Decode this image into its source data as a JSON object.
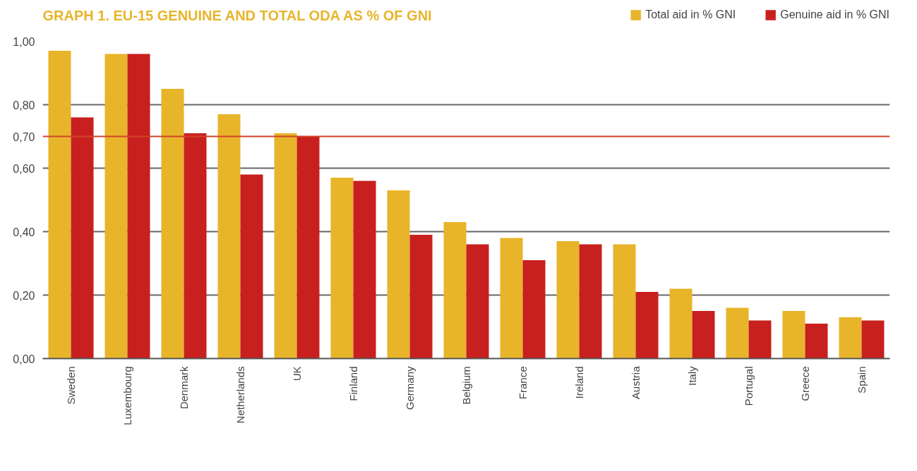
{
  "chart_data": {
    "type": "bar",
    "title": "GRAPH 1. EU-15 GENUINE AND TOTAL ODA AS % OF GNI",
    "categories": [
      "Sweden",
      "Luxembourg",
      "Denmark",
      "Netherlands",
      "UK",
      "Finland",
      "Germany",
      "Belgium",
      "France",
      "Ireland",
      "Austria",
      "Italy",
      "Portugal",
      "Greece",
      "Spain"
    ],
    "series": [
      {
        "name": "Total aid in % GNI",
        "color": "#e8b42a",
        "values": [
          0.97,
          0.96,
          0.85,
          0.77,
          0.71,
          0.57,
          0.53,
          0.43,
          0.38,
          0.37,
          0.36,
          0.22,
          0.16,
          0.15,
          0.13
        ]
      },
      {
        "name": "Genuine aid in % GNI",
        "color": "#c8201e",
        "values": [
          0.76,
          0.96,
          0.71,
          0.58,
          0.7,
          0.56,
          0.39,
          0.36,
          0.31,
          0.36,
          0.21,
          0.15,
          0.12,
          0.11,
          0.12
        ]
      }
    ],
    "ylim": [
      0,
      1.0
    ],
    "yticks": [
      {
        "value": 0,
        "label": "0,00"
      },
      {
        "value": 0.2,
        "label": "0,20"
      },
      {
        "value": 0.4,
        "label": "0,40"
      },
      {
        "value": 0.6,
        "label": "0,60"
      },
      {
        "value": 0.7,
        "label": "0,70"
      },
      {
        "value": 0.8,
        "label": "0,80"
      },
      {
        "value": 1.0,
        "label": "1,00"
      }
    ],
    "ref_lines": [
      {
        "axis": "y",
        "value": 0.7,
        "color": "#d0442a"
      }
    ],
    "grid": "y",
    "legend": "top right"
  }
}
